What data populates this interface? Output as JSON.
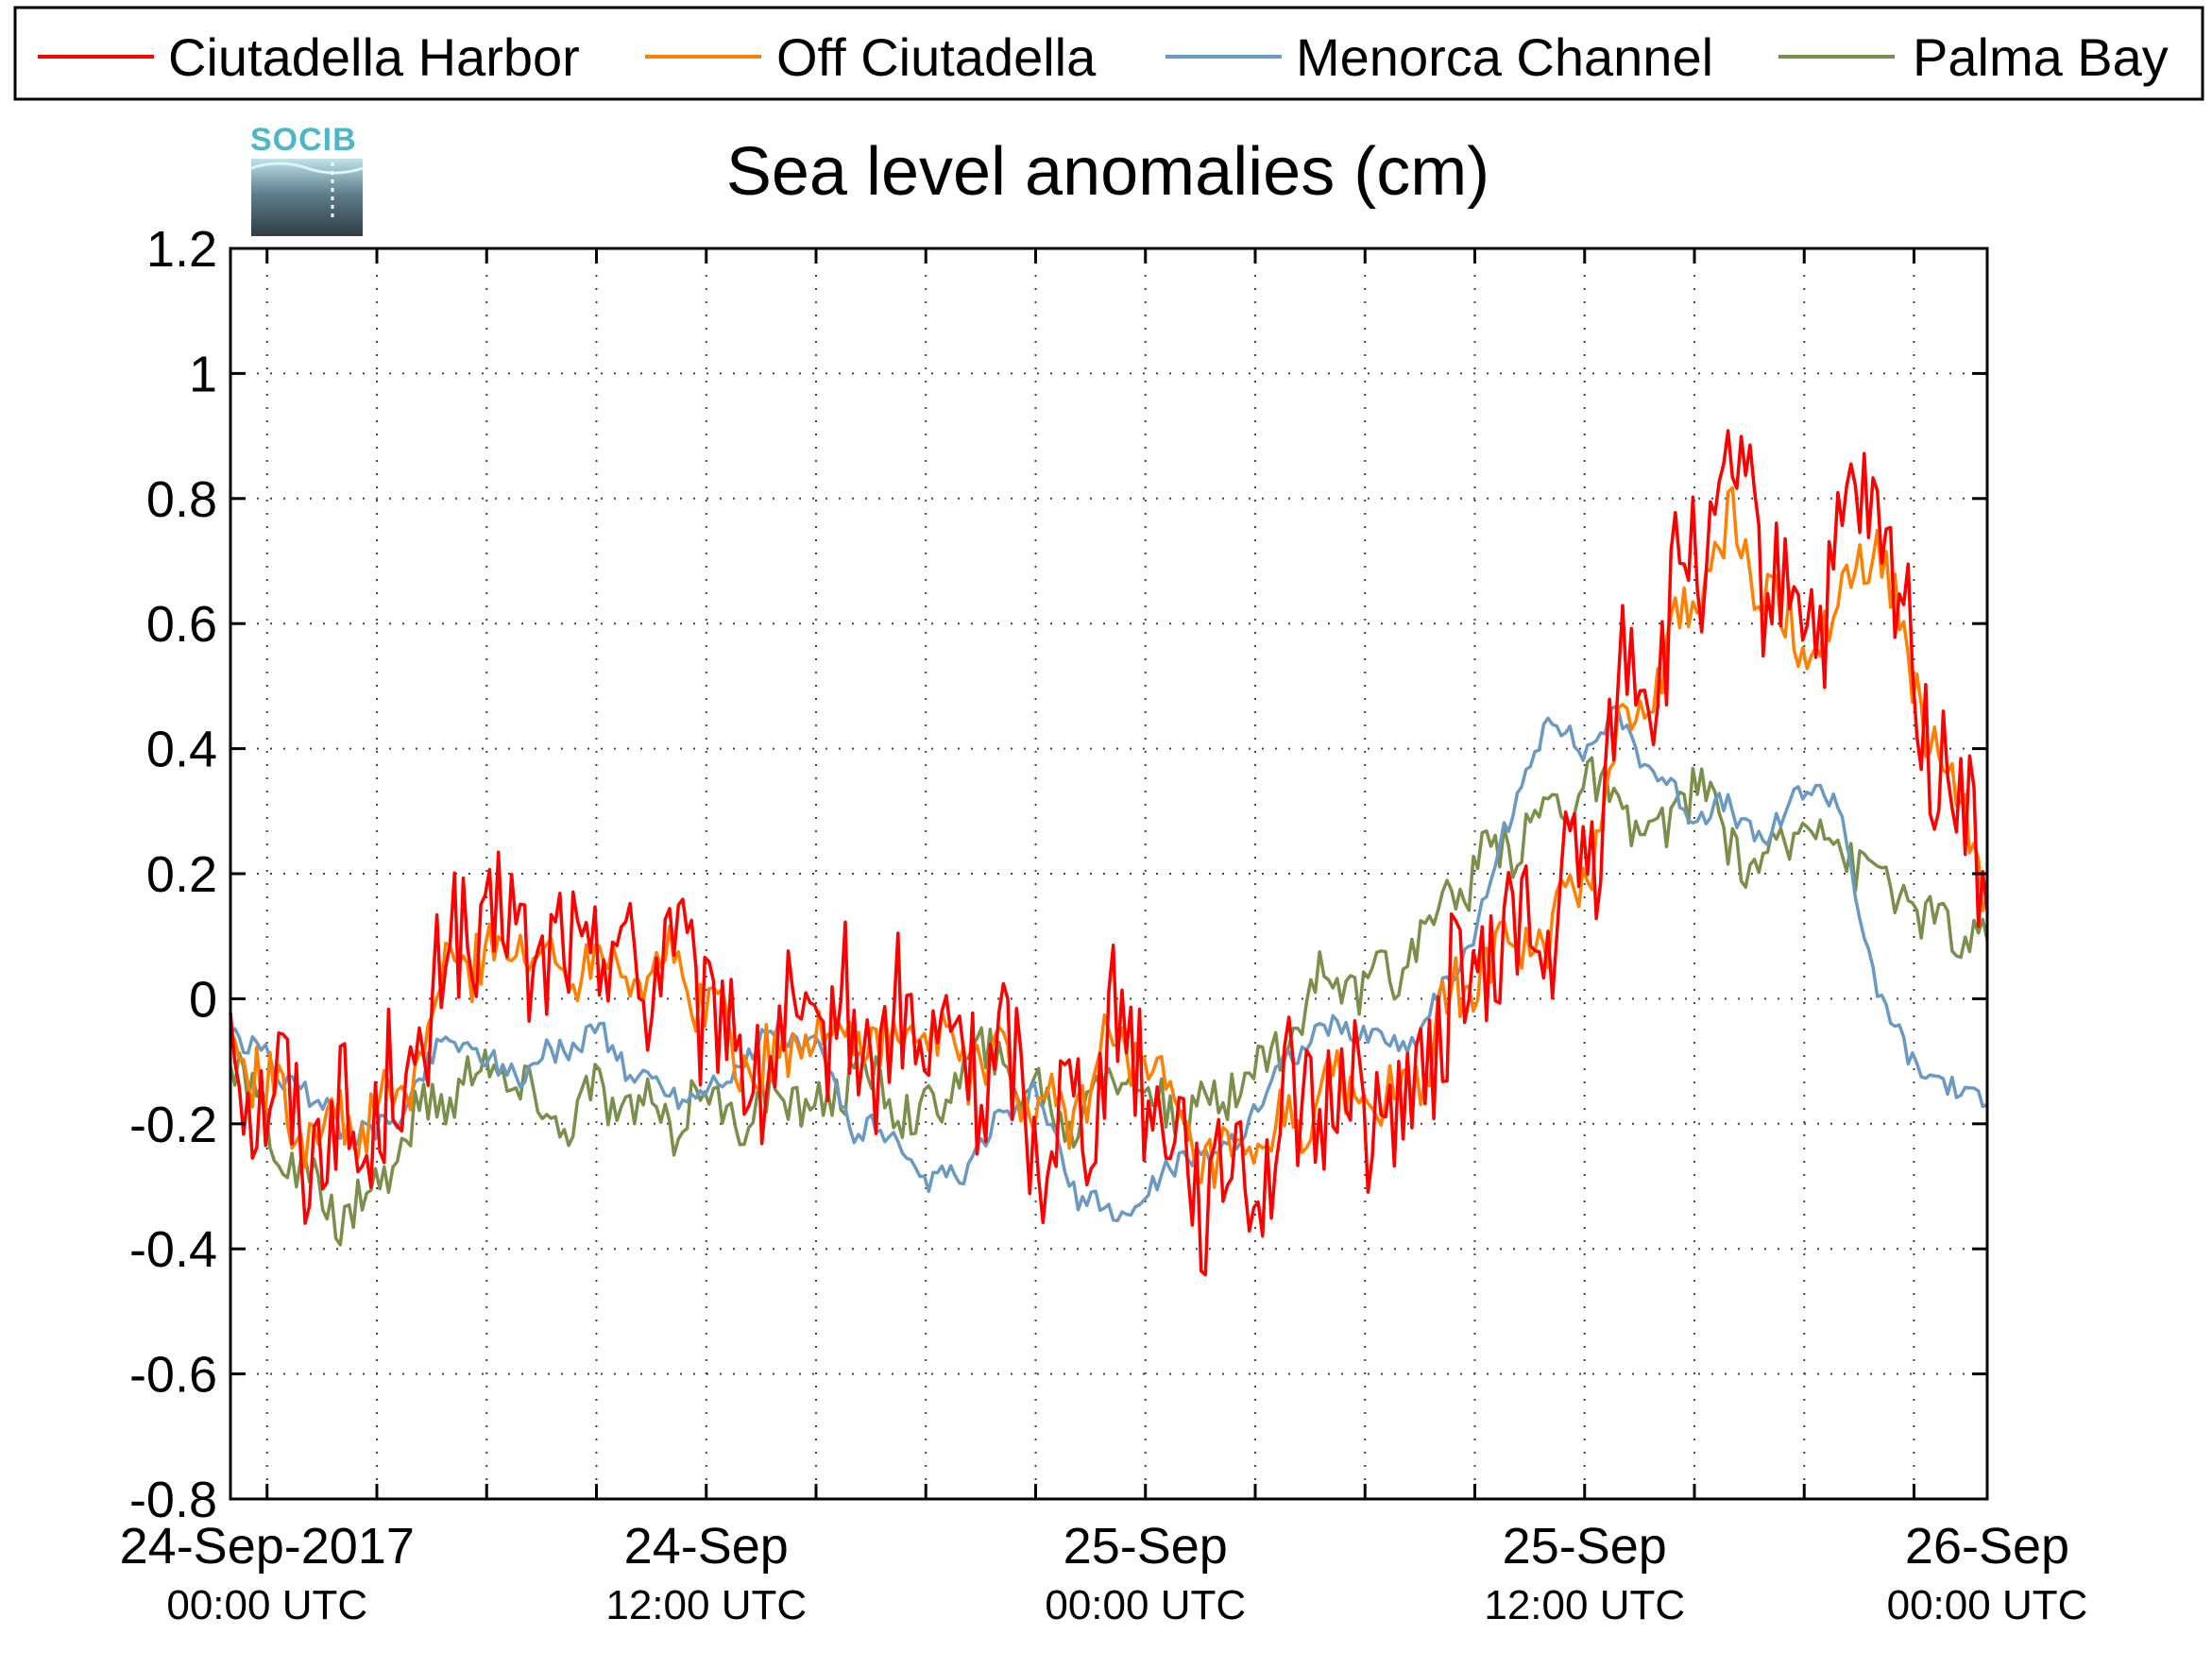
{
  "chart_data": {
    "type": "line",
    "title": "Sea level anomalies (cm)",
    "logo": "SOCIB",
    "ylim": [
      -0.8,
      1.2
    ],
    "yticks": [
      -0.8,
      -0.6,
      -0.4,
      -0.2,
      0,
      0.2,
      0.4,
      0.6,
      0.8,
      1,
      1.2
    ],
    "ytick_labels": [
      "-0.8",
      "-0.6",
      "-0.4",
      "-0.2",
      "0",
      "0.2",
      "0.4",
      "0.6",
      "0.8",
      "1",
      "1.2"
    ],
    "xlim_hours": [
      -1,
      47
    ],
    "grid": true,
    "legend_position": "top",
    "xticks_major": [
      {
        "hour": 0,
        "date": "24-Sep-2017",
        "time": "00:00 UTC"
      },
      {
        "hour": 12,
        "date": "24-Sep",
        "time": "12:00 UTC"
      },
      {
        "hour": 24,
        "date": "25-Sep",
        "time": "00:00 UTC"
      },
      {
        "hour": 36,
        "date": "25-Sep",
        "time": "12:00 UTC"
      },
      {
        "hour": 48,
        "date": "26-Sep",
        "time": "00:00 UTC"
      }
    ],
    "series": [
      {
        "name": "Ciutadella Harbor",
        "color": "#ff0000",
        "noise": 0.12,
        "x": [
          -1,
          0,
          1,
          2,
          3,
          4,
          5,
          6,
          7,
          8,
          9,
          10,
          11,
          12,
          13,
          14,
          15,
          16,
          17,
          18,
          19,
          20,
          21,
          22,
          23,
          24,
          25,
          26,
          27,
          28,
          29,
          30,
          31,
          32,
          33,
          34,
          35,
          36,
          37,
          38,
          39,
          40,
          41,
          42,
          43,
          44,
          45,
          46,
          47
        ],
        "y": [
          -0.05,
          -0.15,
          -0.2,
          -0.22,
          -0.2,
          -0.12,
          0.08,
          0.1,
          0.1,
          0.05,
          0.1,
          0.05,
          0.08,
          0.0,
          -0.1,
          -0.1,
          -0.05,
          -0.05,
          -0.08,
          -0.05,
          -0.1,
          -0.1,
          -0.2,
          -0.2,
          -0.05,
          -0.1,
          -0.25,
          -0.3,
          -0.25,
          -0.2,
          -0.15,
          -0.15,
          -0.2,
          -0.05,
          0.05,
          0.1,
          0.1,
          0.2,
          0.5,
          0.55,
          0.7,
          0.8,
          0.7,
          0.6,
          0.7,
          0.8,
          0.5,
          0.35,
          0.15
        ]
      },
      {
        "name": "Off Ciutadella",
        "color": "#ff8000",
        "noise": 0.05,
        "x": [
          -1,
          0,
          1,
          2,
          3,
          4,
          5,
          6,
          7,
          8,
          9,
          10,
          11,
          12,
          13,
          14,
          15,
          16,
          17,
          18,
          19,
          20,
          21,
          22,
          23,
          24,
          25,
          26,
          27,
          28,
          29,
          30,
          31,
          32,
          33,
          34,
          35,
          36,
          37,
          38,
          39,
          40,
          41,
          42,
          43,
          44,
          45,
          46,
          47
        ],
        "y": [
          -0.05,
          -0.15,
          -0.2,
          -0.2,
          -0.2,
          -0.12,
          0.05,
          0.08,
          0.08,
          0.05,
          0.08,
          0.05,
          0.05,
          0.0,
          -0.1,
          -0.1,
          -0.05,
          -0.05,
          -0.08,
          -0.05,
          -0.1,
          -0.1,
          -0.18,
          -0.2,
          -0.05,
          -0.1,
          -0.22,
          -0.28,
          -0.25,
          -0.2,
          -0.15,
          -0.15,
          -0.18,
          -0.05,
          0.05,
          0.08,
          0.1,
          0.18,
          0.45,
          0.5,
          0.65,
          0.75,
          0.65,
          0.55,
          0.65,
          0.75,
          0.5,
          0.35,
          0.15
        ]
      },
      {
        "name": "Menorca Channel",
        "color": "#6a9ac4",
        "noise": 0.02,
        "x": [
          -1,
          0,
          1,
          2,
          3,
          4,
          5,
          6,
          7,
          8,
          9,
          10,
          11,
          12,
          13,
          14,
          15,
          16,
          17,
          18,
          19,
          20,
          21,
          22,
          23,
          24,
          25,
          26,
          27,
          28,
          29,
          30,
          31,
          32,
          33,
          34,
          35,
          36,
          37,
          38,
          39,
          40,
          41,
          42,
          43,
          44,
          45,
          46,
          47
        ],
        "y": [
          -0.05,
          -0.1,
          -0.15,
          -0.2,
          -0.22,
          -0.15,
          -0.05,
          -0.1,
          -0.12,
          -0.08,
          -0.05,
          -0.12,
          -0.15,
          -0.15,
          -0.1,
          -0.05,
          -0.08,
          -0.2,
          -0.22,
          -0.3,
          -0.28,
          -0.2,
          -0.15,
          -0.3,
          -0.35,
          -0.32,
          -0.25,
          -0.25,
          -0.18,
          -0.08,
          -0.05,
          -0.05,
          -0.08,
          0.0,
          0.1,
          0.3,
          0.45,
          0.4,
          0.45,
          0.35,
          0.3,
          0.3,
          0.25,
          0.35,
          0.3,
          0.0,
          -0.1,
          -0.15,
          -0.15
        ]
      },
      {
        "name": "Palma Bay",
        "color": "#7a8f4a",
        "noise": 0.04,
        "x": [
          -1,
          0,
          1,
          2,
          3,
          4,
          5,
          6,
          7,
          8,
          9,
          10,
          11,
          12,
          13,
          14,
          15,
          16,
          17,
          18,
          19,
          20,
          21,
          22,
          23,
          24,
          25,
          26,
          27,
          28,
          29,
          30,
          31,
          32,
          33,
          34,
          35,
          36,
          37,
          38,
          39,
          40,
          41,
          42,
          43,
          44,
          45,
          46,
          47
        ],
        "y": [
          -0.1,
          -0.2,
          -0.3,
          -0.35,
          -0.3,
          -0.2,
          -0.15,
          -0.1,
          -0.15,
          -0.2,
          -0.15,
          -0.18,
          -0.2,
          -0.15,
          -0.2,
          -0.15,
          -0.18,
          -0.12,
          -0.15,
          -0.2,
          -0.1,
          -0.1,
          -0.15,
          -0.2,
          -0.1,
          -0.15,
          -0.2,
          -0.15,
          -0.12,
          -0.05,
          0.05,
          0.0,
          0.05,
          0.15,
          0.2,
          0.25,
          0.3,
          0.35,
          0.3,
          0.25,
          0.35,
          0.25,
          0.2,
          0.3,
          0.25,
          0.2,
          0.15,
          0.1,
          0.1
        ]
      }
    ]
  }
}
